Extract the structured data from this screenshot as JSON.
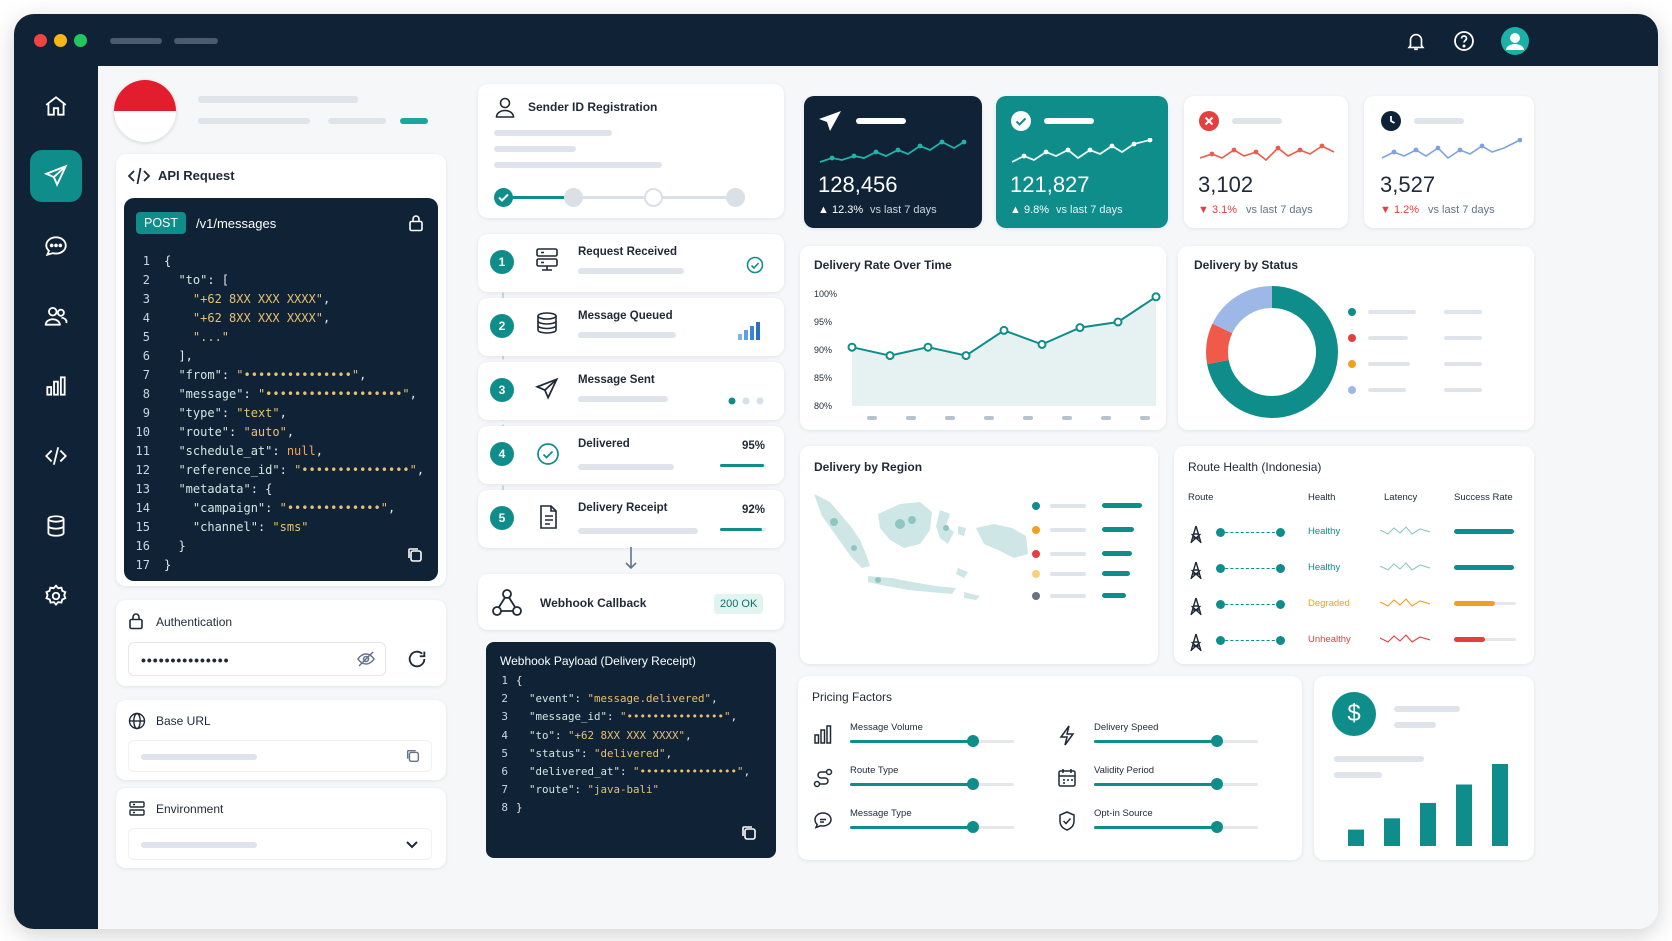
{
  "api": {
    "title": "API Request",
    "method": "POST",
    "endpoint": "/v1/messages",
    "line_numbers": [
      "1",
      "2",
      "3",
      "4",
      "5",
      "6",
      "7",
      "8",
      "9",
      "10",
      "11",
      "12",
      "13",
      "14",
      "15",
      "16",
      "17"
    ],
    "lines": [
      "{",
      "  \"to\": [",
      "    \"+62 8XX XXX XXXX\",",
      "    \"+62 8XX XXX XXXX\",",
      "    \"...\"",
      "  ],",
      "  \"from\": \"•••••••••••••••\",",
      "  \"message\": \"•••••••••••••••••••\",",
      "  \"type\": \"text\",",
      "  \"route\": \"auto\",",
      "  \"schedule_at\": null,",
      "  \"reference_id\": \"•••••••••••••••\",",
      "  \"metadata\": {",
      "    \"campaign\": \"•••••••••••••\",",
      "    \"channel\": \"sms\"",
      "  }",
      "}"
    ]
  },
  "auth": {
    "title": "Authentication",
    "value": "•••••••••••••••"
  },
  "base_url": {
    "title": "Base URL"
  },
  "environment": {
    "title": "Environment"
  },
  "sender": {
    "title": "Sender ID Registration"
  },
  "flow": [
    {
      "num": "1",
      "label": "Request Received"
    },
    {
      "num": "2",
      "label": "Message Queued"
    },
    {
      "num": "3",
      "label": "Message Sent"
    },
    {
      "num": "4",
      "label": "Delivered",
      "value": "95%",
      "progress": 0.95
    },
    {
      "num": "5",
      "label": "Delivery Receipt",
      "value": "92%",
      "progress": 0.92
    }
  ],
  "webhook": {
    "title": "Webhook Callback",
    "status": "200 OK",
    "payload_title": "Webhook Payload (Delivery Receipt)",
    "line_numbers": [
      "1",
      "2",
      "3",
      "4",
      "5",
      "6",
      "7",
      "8"
    ],
    "lines": [
      "{",
      "  \"event\": \"message.delivered\",",
      "  \"message_id\": \"•••••••••••••••\",",
      "  \"to\": \"+62 8XX XXX XXXX\",",
      "  \"status\": \"delivered\",",
      "  \"delivered_at\": \"•••••••••••••••\",",
      "  \"route\": \"java-bali\"",
      "}"
    ]
  },
  "kpis": [
    {
      "value": "128,456",
      "change": "12.3%",
      "direction": "up",
      "compare": "vs last 7 days",
      "color": "#0f2236"
    },
    {
      "value": "121,827",
      "change": "9.8%",
      "direction": "up",
      "compare": "vs last 7 days",
      "color": "#0e8d8a"
    },
    {
      "value": "3,102",
      "change": "3.1%",
      "direction": "down",
      "compare": "vs last 7 days",
      "color": "#e53e3e"
    },
    {
      "value": "3,527",
      "change": "1.2%",
      "direction": "down",
      "compare": "vs last 7 days",
      "color": "#7da3e0"
    }
  ],
  "delivery_rate": {
    "title": "Delivery Rate Over Time"
  },
  "delivery_status": {
    "title": "Delivery by Status"
  },
  "region": {
    "title": "Delivery by Region"
  },
  "route_health": {
    "title": "Route Health (Indonesia)",
    "headers": {
      "route": "Route",
      "health": "Health",
      "latency": "Latency",
      "success": "Success Rate"
    },
    "rows": [
      {
        "health": "Healthy",
        "color": "#0e8d8a",
        "success": 0.97
      },
      {
        "health": "Healthy",
        "color": "#0e8d8a",
        "success": 0.97
      },
      {
        "health": "Degraded",
        "color": "#f0a020",
        "success": 0.66
      },
      {
        "health": "Unhealthy",
        "color": "#e53e3e",
        "success": 0.5
      }
    ]
  },
  "pricing": {
    "title": "Pricing Factors",
    "factors": [
      {
        "label": "Message Volume",
        "icon": "bar-chart-icon",
        "level": 0.75
      },
      {
        "label": "Delivery Speed",
        "icon": "lightning-icon",
        "level": 0.75
      },
      {
        "label": "Route Type",
        "icon": "route-icon",
        "level": 0.75
      },
      {
        "label": "Validity Period",
        "icon": "calendar-icon",
        "level": 0.75
      },
      {
        "label": "Message Type",
        "icon": "message-icon",
        "level": 0.75
      },
      {
        "label": "Opt-in Source",
        "icon": "shield-icon",
        "level": 0.75
      }
    ]
  },
  "chart_data": [
    {
      "type": "line",
      "title": "Delivery Rate Over Time",
      "y_ticks": [
        "100%",
        "95%",
        "90%",
        "85%",
        "80%"
      ],
      "ylim": [
        80,
        100
      ],
      "values": [
        90.5,
        89,
        90.5,
        89,
        93.5,
        91,
        94,
        95,
        99.5
      ],
      "color": "#0e8d8a"
    },
    {
      "type": "pie",
      "title": "Delivery by Status",
      "values": [
        72,
        10,
        18
      ],
      "colors": [
        "#0e8d8a",
        "#ef5a4a",
        "#9db8e6"
      ]
    },
    {
      "type": "bar",
      "values": [
        16,
        27,
        42,
        60,
        80
      ],
      "color": "#0e8d8a"
    }
  ],
  "colors": {
    "navy": "#0f2236",
    "teal": "#0e8d8a",
    "red": "#e53e3e",
    "orange": "#f0a020",
    "blue": "#7da3e0"
  }
}
